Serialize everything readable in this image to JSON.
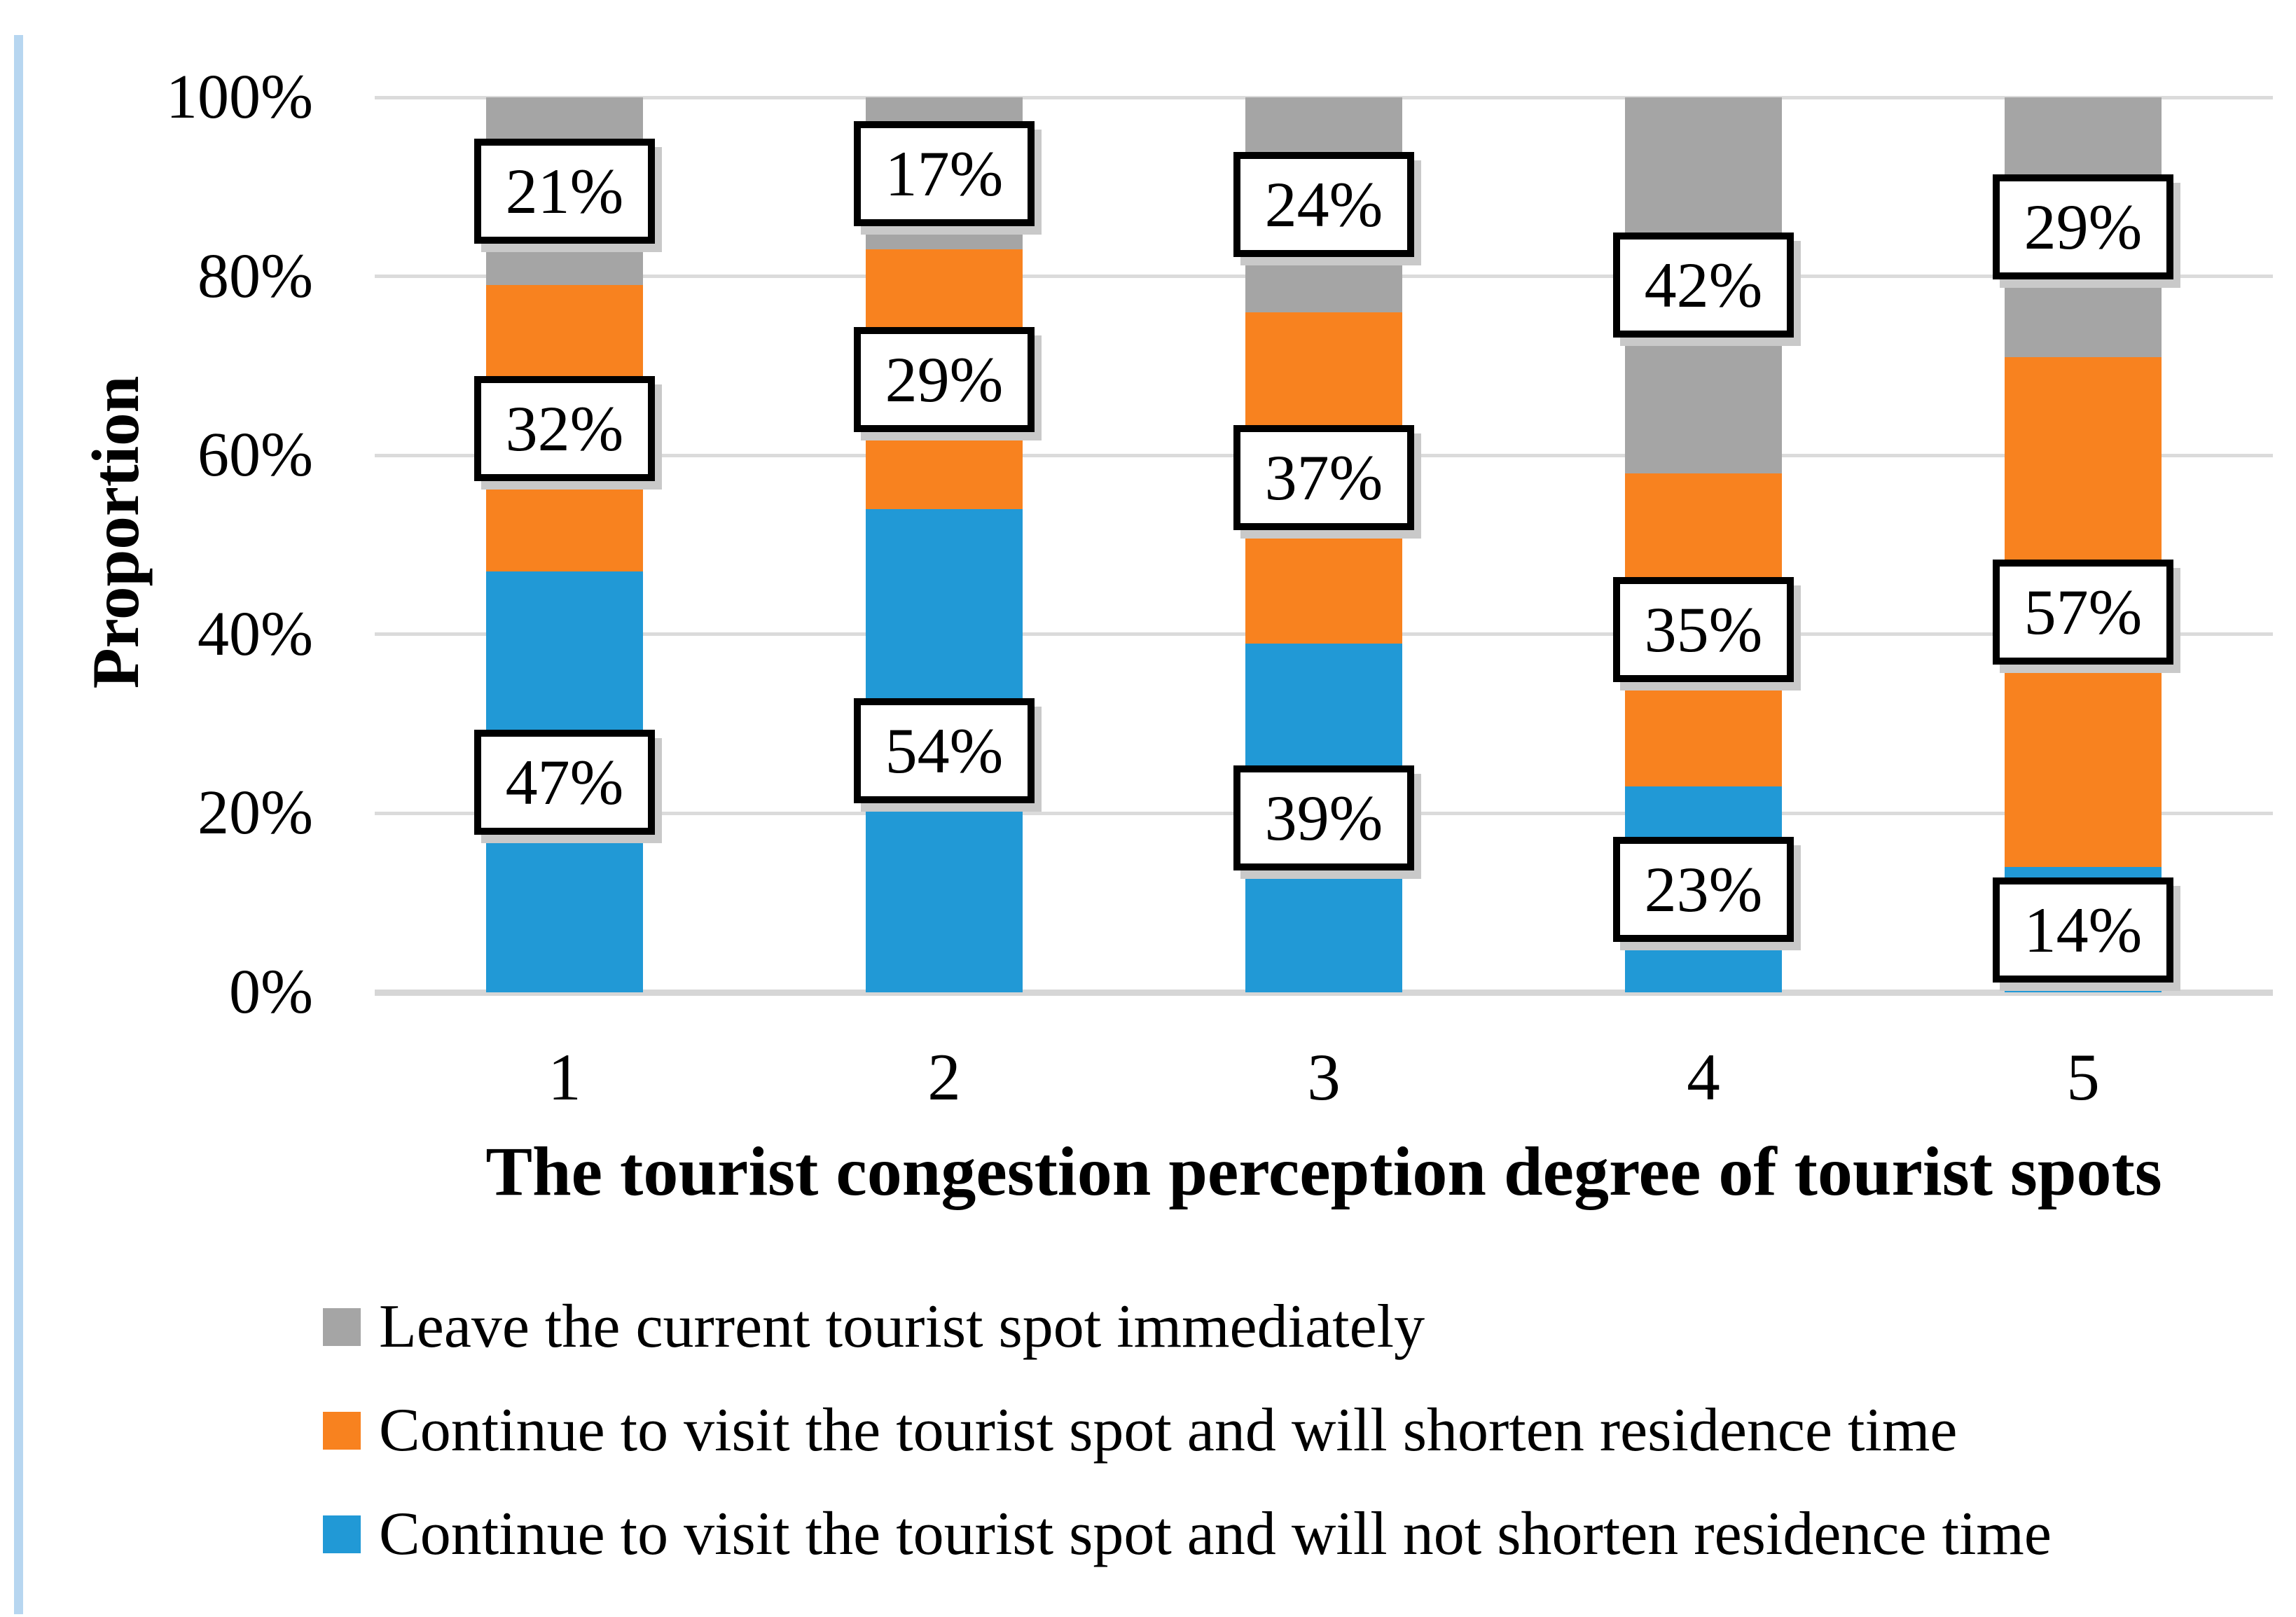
{
  "chart_data": {
    "type": "bar",
    "stacked": true,
    "title": "",
    "xlabel": "The tourist congestion perception degree of tourist spots",
    "ylabel": "Proportion",
    "categories": [
      "1",
      "2",
      "3",
      "4",
      "5"
    ],
    "series": [
      {
        "name": "Continue to visit the tourist spot and will not shorten residence time",
        "color": "#2199D6",
        "values": [
          47,
          54,
          39,
          23,
          14
        ],
        "labels": [
          "47%",
          "54%",
          "39%",
          "23%",
          "14%"
        ]
      },
      {
        "name": "Continue to visit the tourist spot and will shorten residence time",
        "color": "#F8821F",
        "values": [
          32,
          29,
          37,
          35,
          57
        ],
        "labels": [
          "32%",
          "29%",
          "37%",
          "35%",
          "57%"
        ]
      },
      {
        "name": "Leave the current tourist spot immediately",
        "color": "#A5A5A5",
        "values": [
          21,
          17,
          24,
          42,
          29
        ],
        "labels": [
          "21%",
          "17%",
          "24%",
          "42%",
          "29%"
        ]
      }
    ],
    "yticks": [
      "0%",
      "20%",
      "40%",
      "60%",
      "80%",
      "100%"
    ],
    "ylim": [
      0,
      100
    ],
    "grid": true,
    "data_labels_boxed": true,
    "legend_position": "bottom-left",
    "legend_order": [
      2,
      1,
      0
    ]
  },
  "colors": {
    "gridline": "#DBDBDB",
    "axis_line": "#D6D6D6",
    "left_accent_line": "#B7D6F0",
    "label_box_border": "#000000",
    "label_box_bg": "#FFFFFF",
    "label_box_shadow": "#C9C9C9"
  }
}
